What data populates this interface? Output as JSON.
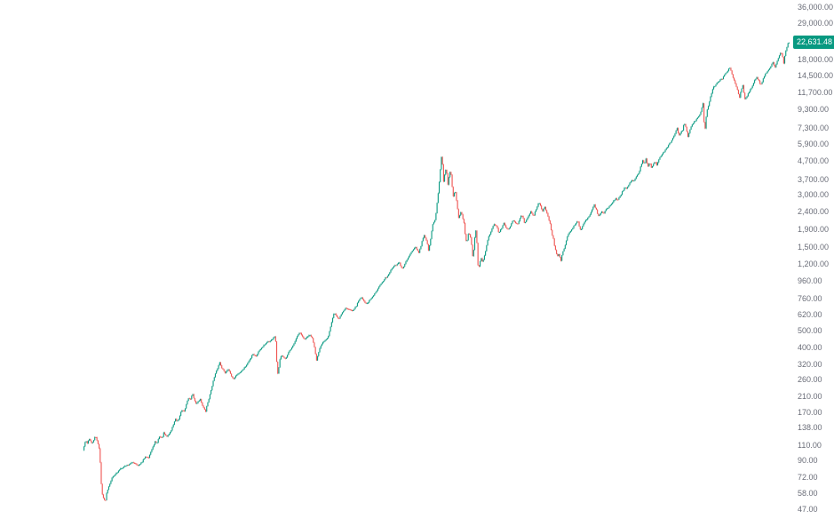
{
  "app": {
    "background": "#ffffff",
    "description": "Log-scale monthly candlestick price chart with right-hand price axis"
  },
  "price_axis": {
    "side": "right",
    "text_color": "#6a6d78",
    "ticks": [
      {
        "text": "36,000.00",
        "value": 36000
      },
      {
        "text": "29,000.00",
        "value": 29000
      },
      {
        "text": "18,000.00",
        "value": 18000
      },
      {
        "text": "14,500.00",
        "value": 14500
      },
      {
        "text": "11,700.00",
        "value": 11700
      },
      {
        "text": "9,300.00",
        "value": 9300
      },
      {
        "text": "7,300.00",
        "value": 7300
      },
      {
        "text": "5,900.00",
        "value": 5900
      },
      {
        "text": "4,700.00",
        "value": 4700
      },
      {
        "text": "3,700.00",
        "value": 3700
      },
      {
        "text": "3,000.00",
        "value": 3000
      },
      {
        "text": "2,400.00",
        "value": 2400
      },
      {
        "text": "1,900.00",
        "value": 1900
      },
      {
        "text": "1,500.00",
        "value": 1500
      },
      {
        "text": "1,200.00",
        "value": 1200
      },
      {
        "text": "960.00",
        "value": 960
      },
      {
        "text": "760.00",
        "value": 760
      },
      {
        "text": "620.00",
        "value": 620
      },
      {
        "text": "500.00",
        "value": 500
      },
      {
        "text": "400.00",
        "value": 400
      },
      {
        "text": "320.00",
        "value": 320
      },
      {
        "text": "260.00",
        "value": 260
      },
      {
        "text": "210.00",
        "value": 210
      },
      {
        "text": "170.00",
        "value": 170
      },
      {
        "text": "138.00",
        "value": 138
      },
      {
        "text": "110.00",
        "value": 110
      },
      {
        "text": "90.00",
        "value": 90
      },
      {
        "text": "72.00",
        "value": 72
      },
      {
        "text": "58.00",
        "value": 58
      },
      {
        "text": "47.00",
        "value": 47
      }
    ]
  },
  "last_price_label": {
    "text": "22,631.48",
    "value": 22631.48,
    "background": "#089981",
    "text_color": "#ffffff"
  },
  "chart_data": {
    "type": "candlestick",
    "y_scale": "log",
    "grid": false,
    "x_axis_visible": false,
    "legend": "none",
    "up_color": "#089981",
    "down_color": "#ef5350",
    "last_price": 22631.48,
    "visible_price_range": [
      41,
      39500
    ],
    "render_seed": 42,
    "path_keypoints": [
      [
        94,
        103
      ],
      [
        97,
        117
      ],
      [
        99,
        113
      ],
      [
        101,
        121
      ],
      [
        104,
        112
      ],
      [
        106,
        118
      ],
      [
        108,
        124
      ],
      [
        110,
        117
      ],
      [
        112,
        108
      ],
      [
        113,
        96
      ],
      [
        115,
        60
      ],
      [
        117,
        55
      ],
      [
        119,
        52
      ],
      [
        121,
        60
      ],
      [
        124,
        66
      ],
      [
        127,
        72
      ],
      [
        130,
        75
      ],
      [
        133,
        77
      ],
      [
        136,
        81
      ],
      [
        140,
        83
      ],
      [
        144,
        85
      ],
      [
        147,
        86
      ],
      [
        150,
        88
      ],
      [
        153,
        87
      ],
      [
        156,
        84
      ],
      [
        159,
        86
      ],
      [
        162,
        91
      ],
      [
        165,
        95
      ],
      [
        168,
        94
      ],
      [
        170,
        100
      ],
      [
        173,
        108
      ],
      [
        175,
        116
      ],
      [
        177,
        112
      ],
      [
        180,
        124
      ],
      [
        183,
        121
      ],
      [
        185,
        130
      ],
      [
        188,
        123
      ],
      [
        190,
        126
      ],
      [
        193,
        133
      ],
      [
        196,
        146
      ],
      [
        198,
        156
      ],
      [
        200,
        150
      ],
      [
        202,
        155
      ],
      [
        204,
        170
      ],
      [
        206,
        177
      ],
      [
        208,
        172
      ],
      [
        210,
        186
      ],
      [
        213,
        208
      ],
      [
        215,
        200
      ],
      [
        217,
        219
      ],
      [
        219,
        205
      ],
      [
        221,
        190
      ],
      [
        224,
        198
      ],
      [
        226,
        203
      ],
      [
        229,
        184
      ],
      [
        232,
        171
      ],
      [
        234,
        190
      ],
      [
        237,
        215
      ],
      [
        239,
        238
      ],
      [
        241,
        262
      ],
      [
        243,
        282
      ],
      [
        245,
        300
      ],
      [
        247,
        320
      ],
      [
        248,
        331
      ],
      [
        250,
        310
      ],
      [
        252,
        297
      ],
      [
        254,
        287
      ],
      [
        256,
        296
      ],
      [
        258,
        304
      ],
      [
        260,
        282
      ],
      [
        263,
        263
      ],
      [
        265,
        272
      ],
      [
        267,
        280
      ],
      [
        270,
        287
      ],
      [
        272,
        292
      ],
      [
        274,
        300
      ],
      [
        276,
        308
      ],
      [
        278,
        317
      ],
      [
        280,
        330
      ],
      [
        283,
        350
      ],
      [
        285,
        371
      ],
      [
        287,
        362
      ],
      [
        289,
        358
      ],
      [
        291,
        375
      ],
      [
        293,
        390
      ],
      [
        295,
        400
      ],
      [
        297,
        411
      ],
      [
        300,
        425
      ],
      [
        302,
        435
      ],
      [
        304,
        428
      ],
      [
        306,
        445
      ],
      [
        308,
        452
      ],
      [
        310,
        466
      ],
      [
        311,
        430
      ],
      [
        312,
        340
      ],
      [
        313,
        278
      ],
      [
        315,
        320
      ],
      [
        316,
        350
      ],
      [
        318,
        363
      ],
      [
        320,
        352
      ],
      [
        322,
        343
      ],
      [
        324,
        360
      ],
      [
        326,
        380
      ],
      [
        328,
        395
      ],
      [
        330,
        411
      ],
      [
        332,
        425
      ],
      [
        334,
        450
      ],
      [
        336,
        470
      ],
      [
        338,
        490
      ],
      [
        340,
        472
      ],
      [
        342,
        458
      ],
      [
        344,
        446
      ],
      [
        347,
        465
      ],
      [
        350,
        472
      ],
      [
        352,
        455
      ],
      [
        354,
        420
      ],
      [
        356,
        365
      ],
      [
        357,
        340
      ],
      [
        359,
        370
      ],
      [
        361,
        400
      ],
      [
        363,
        420
      ],
      [
        365,
        436
      ],
      [
        368,
        450
      ],
      [
        370,
        462
      ],
      [
        372,
        510
      ],
      [
        374,
        560
      ],
      [
        377,
        640
      ],
      [
        379,
        610
      ],
      [
        382,
        585
      ],
      [
        384,
        612
      ],
      [
        386,
        640
      ],
      [
        390,
        680
      ],
      [
        392,
        668
      ],
      [
        395,
        660
      ],
      [
        397,
        656
      ],
      [
        400,
        675
      ],
      [
        402,
        700
      ],
      [
        404,
        740
      ],
      [
        407,
        782
      ],
      [
        409,
        765
      ],
      [
        411,
        735
      ],
      [
        413,
        713
      ],
      [
        415,
        730
      ],
      [
        417,
        750
      ],
      [
        420,
        782
      ],
      [
        422,
        810
      ],
      [
        424,
        840
      ],
      [
        427,
        900
      ],
      [
        429,
        930
      ],
      [
        432,
        960
      ],
      [
        434,
        1000
      ],
      [
        437,
        1035
      ],
      [
        440,
        1100
      ],
      [
        443,
        1164
      ],
      [
        445,
        1180
      ],
      [
        447,
        1200
      ],
      [
        450,
        1235
      ],
      [
        452,
        1160
      ],
      [
        454,
        1140
      ],
      [
        456,
        1200
      ],
      [
        458,
        1260
      ],
      [
        460,
        1310
      ],
      [
        462,
        1372
      ],
      [
        464,
        1410
      ],
      [
        466,
        1460
      ],
      [
        468,
        1528
      ],
      [
        470,
        1460
      ],
      [
        472,
        1400
      ],
      [
        474,
        1500
      ],
      [
        476,
        1650
      ],
      [
        478,
        1785
      ],
      [
        480,
        1680
      ],
      [
        482,
        1560
      ],
      [
        483,
        1435
      ],
      [
        485,
        1620
      ],
      [
        486,
        1800
      ],
      [
        488,
        2055
      ],
      [
        490,
        2150
      ],
      [
        491,
        2235
      ],
      [
        492,
        2500
      ],
      [
        493,
        2800
      ],
      [
        494,
        3100
      ],
      [
        495,
        3500
      ],
      [
        496,
        4030
      ],
      [
        497,
        4700
      ],
      [
        498,
        5180
      ],
      [
        499,
        4300
      ],
      [
        500,
        3590
      ],
      [
        501,
        3900
      ],
      [
        503,
        4390
      ],
      [
        504,
        3800
      ],
      [
        505,
        3370
      ],
      [
        506,
        3800
      ],
      [
        508,
        4280
      ],
      [
        509,
        3600
      ],
      [
        511,
        2920
      ],
      [
        513,
        3250
      ],
      [
        515,
        2700
      ],
      [
        517,
        2235
      ],
      [
        520,
        2430
      ],
      [
        521,
        2250
      ],
      [
        523,
        2100
      ],
      [
        524,
        1850
      ],
      [
        526,
        1580
      ],
      [
        528,
        1830
      ],
      [
        530,
        1750
      ],
      [
        531,
        1650
      ],
      [
        533,
        1290
      ],
      [
        535,
        1700
      ],
      [
        536,
        1950
      ],
      [
        537,
        1750
      ],
      [
        538,
        1500
      ],
      [
        539,
        1110
      ],
      [
        541,
        1250
      ],
      [
        542,
        1320
      ],
      [
        544,
        1235
      ],
      [
        546,
        1350
      ],
      [
        548,
        1500
      ],
      [
        550,
        1690
      ],
      [
        553,
        1850
      ],
      [
        555,
        1980
      ],
      [
        557,
        2060
      ],
      [
        559,
        2010
      ],
      [
        561,
        1930
      ],
      [
        562,
        1815
      ],
      [
        564,
        1900
      ],
      [
        566,
        1980
      ],
      [
        568,
        2085
      ],
      [
        570,
        1980
      ],
      [
        572,
        1905
      ],
      [
        574,
        1960
      ],
      [
        576,
        2040
      ],
      [
        578,
        2160
      ],
      [
        580,
        2110
      ],
      [
        582,
        2060
      ],
      [
        583,
        2035
      ],
      [
        585,
        2160
      ],
      [
        588,
        2330
      ],
      [
        590,
        2180
      ],
      [
        591,
        2085
      ],
      [
        593,
        2150
      ],
      [
        595,
        2250
      ],
      [
        597,
        2370
      ],
      [
        598,
        2420
      ],
      [
        600,
        2340
      ],
      [
        601,
        2280
      ],
      [
        603,
        2400
      ],
      [
        605,
        2550
      ],
      [
        607,
        2760
      ],
      [
        608,
        2700
      ],
      [
        609,
        2620
      ],
      [
        611,
        2420
      ],
      [
        613,
        2520
      ],
      [
        614,
        2580
      ],
      [
        616,
        2400
      ],
      [
        618,
        2235
      ],
      [
        620,
        2050
      ],
      [
        622,
        1815
      ],
      [
        624,
        1650
      ],
      [
        625,
        1525
      ],
      [
        627,
        1400
      ],
      [
        628,
        1330
      ],
      [
        630,
        1390
      ],
      [
        631,
        1310
      ],
      [
        632,
        1265
      ],
      [
        634,
        1400
      ],
      [
        636,
        1500
      ],
      [
        638,
        1640
      ],
      [
        640,
        1780
      ],
      [
        642,
        1850
      ],
      [
        644,
        1905
      ],
      [
        646,
        1980
      ],
      [
        648,
        2040
      ],
      [
        650,
        2120
      ],
      [
        651,
        2160
      ],
      [
        653,
        1980
      ],
      [
        654,
        1900
      ],
      [
        656,
        1960
      ],
      [
        658,
        2080
      ],
      [
        660,
        2160
      ],
      [
        662,
        2220
      ],
      [
        664,
        2280
      ],
      [
        666,
        2400
      ],
      [
        668,
        2550
      ],
      [
        670,
        2680
      ],
      [
        671,
        2550
      ],
      [
        673,
        2420
      ],
      [
        674,
        2260
      ],
      [
        676,
        2350
      ],
      [
        678,
        2420
      ],
      [
        680,
        2350
      ],
      [
        682,
        2450
      ],
      [
        684,
        2520
      ],
      [
        686,
        2580
      ],
      [
        688,
        2650
      ],
      [
        690,
        2720
      ],
      [
        692,
        2820
      ],
      [
        694,
        2880
      ],
      [
        696,
        2800
      ],
      [
        698,
        2930
      ],
      [
        700,
        3060
      ],
      [
        702,
        3200
      ],
      [
        704,
        3350
      ],
      [
        706,
        3280
      ],
      [
        708,
        3400
      ],
      [
        710,
        3560
      ],
      [
        712,
        3640
      ],
      [
        714,
        3590
      ],
      [
        716,
        3750
      ],
      [
        718,
        3900
      ],
      [
        720,
        4080
      ],
      [
        722,
        4400
      ],
      [
        724,
        4800
      ],
      [
        726,
        4500
      ],
      [
        728,
        4900
      ],
      [
        730,
        4350
      ],
      [
        732,
        4650
      ],
      [
        734,
        4300
      ],
      [
        736,
        4550
      ],
      [
        738,
        4700
      ],
      [
        740,
        4500
      ],
      [
        742,
        4800
      ],
      [
        744,
        5000
      ],
      [
        746,
        5150
      ],
      [
        748,
        5310
      ],
      [
        750,
        5500
      ],
      [
        752,
        5700
      ],
      [
        754,
        5900
      ],
      [
        756,
        6100
      ],
      [
        758,
        6350
      ],
      [
        760,
        6700
      ],
      [
        763,
        7300
      ],
      [
        765,
        6600
      ],
      [
        767,
        6870
      ],
      [
        769,
        7100
      ],
      [
        771,
        7900
      ],
      [
        773,
        7300
      ],
      [
        775,
        6500
      ],
      [
        777,
        7000
      ],
      [
        779,
        7550
      ],
      [
        781,
        7800
      ],
      [
        783,
        8000
      ],
      [
        785,
        8250
      ],
      [
        787,
        8500
      ],
      [
        789,
        8800
      ],
      [
        791,
        9600
      ],
      [
        792,
        10200
      ],
      [
        794,
        6900
      ],
      [
        796,
        8900
      ],
      [
        798,
        9800
      ],
      [
        800,
        10800
      ],
      [
        802,
        11800
      ],
      [
        804,
        12600
      ],
      [
        806,
        12900
      ],
      [
        808,
        13300
      ],
      [
        810,
        13600
      ],
      [
        812,
        13900
      ],
      [
        814,
        14100
      ],
      [
        816,
        14700
      ],
      [
        818,
        15100
      ],
      [
        820,
        15600
      ],
      [
        822,
        16400
      ],
      [
        824,
        15400
      ],
      [
        826,
        14300
      ],
      [
        828,
        13300
      ],
      [
        830,
        12500
      ],
      [
        832,
        11400
      ],
      [
        833,
        10800
      ],
      [
        835,
        12100
      ],
      [
        837,
        12900
      ],
      [
        839,
        10600
      ],
      [
        841,
        11000
      ],
      [
        843,
        11500
      ],
      [
        845,
        12000
      ],
      [
        847,
        12600
      ],
      [
        849,
        13300
      ],
      [
        851,
        13900
      ],
      [
        853,
        14300
      ],
      [
        855,
        13700
      ],
      [
        857,
        12800
      ],
      [
        859,
        13600
      ],
      [
        861,
        14500
      ],
      [
        863,
        15100
      ],
      [
        865,
        15600
      ],
      [
        867,
        16100
      ],
      [
        869,
        16700
      ],
      [
        871,
        17500
      ],
      [
        873,
        16200
      ],
      [
        875,
        17400
      ],
      [
        877,
        18600
      ],
      [
        879,
        19500
      ],
      [
        880,
        19900
      ],
      [
        882,
        18500
      ],
      [
        883,
        17000
      ],
      [
        884,
        18800
      ],
      [
        885,
        19800
      ],
      [
        886,
        20900
      ],
      [
        887,
        21700
      ],
      [
        888,
        22631.48
      ]
    ]
  }
}
